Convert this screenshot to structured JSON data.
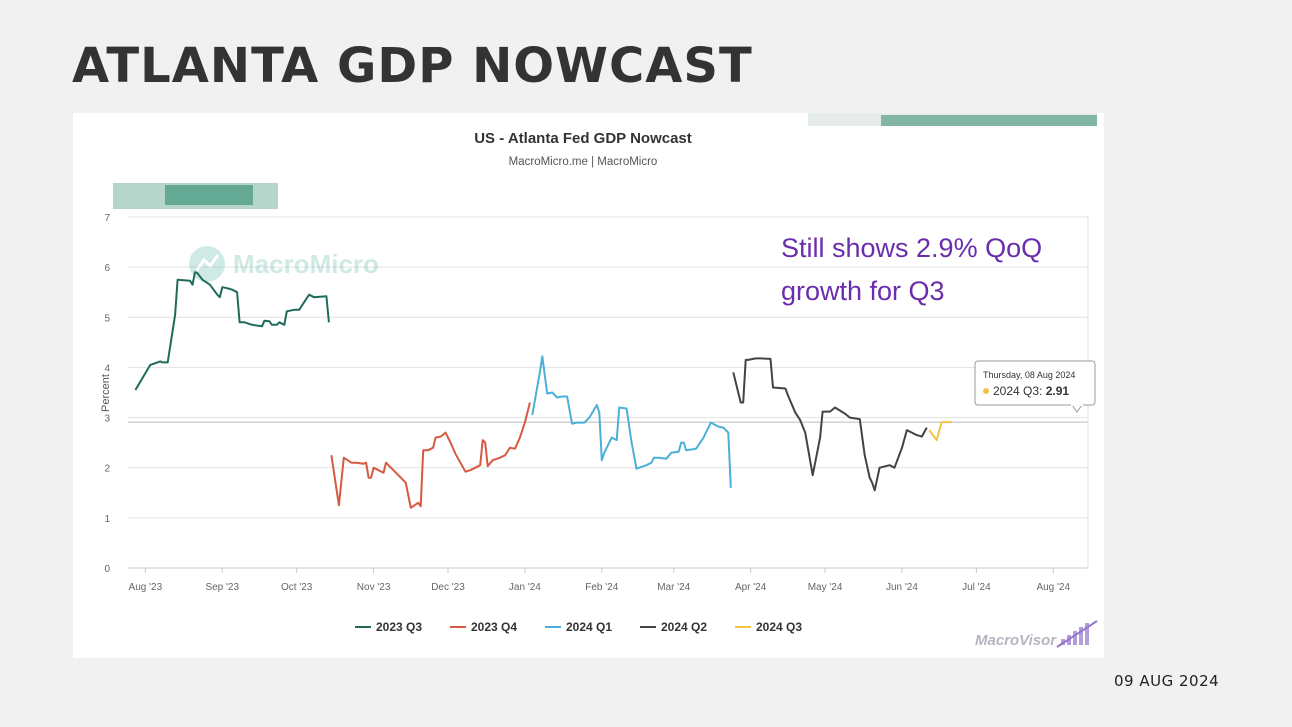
{
  "slide": {
    "title": "ATLANTA GDP NOWCAST",
    "date": "09 AUG 2024"
  },
  "branding": {
    "watermark": "MacroMicro",
    "logo": "MacroVisor"
  },
  "annotation": {
    "line1": "Still shows 2.9% QoQ",
    "line2": "growth for Q3",
    "color": "#6a2dab"
  },
  "tooltip": {
    "date": "Thursday, 08 Aug 2024",
    "series": "2024 Q3",
    "separator": ": ",
    "value": "2.91"
  },
  "chart_data": {
    "type": "line",
    "title": "US - Atlanta Fed GDP Nowcast",
    "subtitle": "MacroMicro.me | MacroMicro",
    "ylabel": "Percent",
    "xlabel": "",
    "ylim": [
      0,
      7
    ],
    "yticks": [
      0,
      1,
      2,
      3,
      4,
      5,
      6,
      7
    ],
    "x_start": "2023-07-25",
    "x_end": "2024-08-15",
    "xticks": [
      {
        "label": "Aug '23",
        "day": 7
      },
      {
        "label": "Sep '23",
        "day": 38
      },
      {
        "label": "Oct '23",
        "day": 68
      },
      {
        "label": "Nov '23",
        "day": 99
      },
      {
        "label": "Dec '23",
        "day": 129
      },
      {
        "label": "Jan '24",
        "day": 160
      },
      {
        "label": "Feb '24",
        "day": 191
      },
      {
        "label": "Mar '24",
        "day": 220
      },
      {
        "label": "Apr '24",
        "day": 251
      },
      {
        "label": "May '24",
        "day": 281
      },
      {
        "label": "Jun '24",
        "day": 312
      },
      {
        "label": "Jul '24",
        "day": 342
      },
      {
        "label": "Aug '24",
        "day": 373
      }
    ],
    "reference_value": 2.91,
    "series": [
      {
        "name": "2023 Q3",
        "color": "#1e6b5c",
        "points": [
          [
            3,
            3.55
          ],
          [
            9,
            4.05
          ],
          [
            13,
            4.12
          ],
          [
            14,
            4.1
          ],
          [
            16,
            4.1
          ],
          [
            19,
            5.05
          ],
          [
            20,
            5.75
          ],
          [
            25,
            5.73
          ],
          [
            26,
            5.65
          ],
          [
            27,
            5.9
          ],
          [
            28,
            5.88
          ],
          [
            30,
            5.75
          ],
          [
            33,
            5.65
          ],
          [
            36,
            5.45
          ],
          [
            37,
            5.4
          ],
          [
            38,
            5.6
          ],
          [
            40,
            5.58
          ],
          [
            42,
            5.55
          ],
          [
            44,
            5.5
          ],
          [
            45,
            4.9
          ],
          [
            47,
            4.9
          ],
          [
            50,
            4.85
          ],
          [
            54,
            4.82
          ],
          [
            55,
            4.93
          ],
          [
            57,
            4.92
          ],
          [
            58,
            4.85
          ],
          [
            60,
            4.85
          ],
          [
            61,
            4.9
          ],
          [
            63,
            4.85
          ],
          [
            64,
            5.12
          ],
          [
            67,
            5.15
          ],
          [
            69,
            5.15
          ],
          [
            71,
            5.3
          ],
          [
            73,
            5.45
          ],
          [
            75,
            5.4
          ],
          [
            80,
            5.42
          ],
          [
            81,
            4.9
          ]
        ]
      },
      {
        "name": "2023 Q4",
        "color": "#d65a41",
        "points": [
          [
            82,
            2.25
          ],
          [
            85,
            1.25
          ],
          [
            87,
            2.2
          ],
          [
            90,
            2.1
          ],
          [
            92,
            2.1
          ],
          [
            95,
            2.08
          ],
          [
            96,
            2.1
          ],
          [
            97,
            1.8
          ],
          [
            98,
            1.8
          ],
          [
            99,
            2.0
          ],
          [
            101,
            1.95
          ],
          [
            103,
            1.9
          ],
          [
            104,
            2.1
          ],
          [
            107,
            1.95
          ],
          [
            110,
            1.8
          ],
          [
            112,
            1.7
          ],
          [
            114,
            1.2
          ],
          [
            117,
            1.3
          ],
          [
            118,
            1.23
          ],
          [
            119,
            2.35
          ],
          [
            121,
            2.35
          ],
          [
            123,
            2.4
          ],
          [
            124,
            2.6
          ],
          [
            126,
            2.62
          ],
          [
            128,
            2.7
          ],
          [
            130,
            2.5
          ],
          [
            132,
            2.28
          ],
          [
            134,
            2.1
          ],
          [
            136,
            1.92
          ],
          [
            138,
            1.95
          ],
          [
            140,
            2.0
          ],
          [
            142,
            2.05
          ],
          [
            143,
            2.55
          ],
          [
            144,
            2.5
          ],
          [
            145,
            2.03
          ],
          [
            147,
            2.15
          ],
          [
            150,
            2.2
          ],
          [
            152,
            2.25
          ],
          [
            154,
            2.4
          ],
          [
            156,
            2.38
          ],
          [
            158,
            2.6
          ],
          [
            160,
            2.9
          ],
          [
            162,
            3.3
          ]
        ]
      },
      {
        "name": "2024 Q1",
        "color": "#4ab0d9",
        "points": [
          [
            163,
            3.05
          ],
          [
            166,
            3.9
          ],
          [
            167,
            4.22
          ],
          [
            169,
            3.48
          ],
          [
            171,
            3.5
          ],
          [
            173,
            3.4
          ],
          [
            175,
            3.42
          ],
          [
            177,
            3.42
          ],
          [
            179,
            2.88
          ],
          [
            181,
            2.9
          ],
          [
            184,
            2.9
          ],
          [
            186,
            3.0
          ],
          [
            189,
            3.25
          ],
          [
            190,
            3.1
          ],
          [
            191,
            2.15
          ],
          [
            192,
            2.3
          ],
          [
            195,
            2.6
          ],
          [
            197,
            2.55
          ],
          [
            198,
            3.2
          ],
          [
            201,
            3.18
          ],
          [
            203,
            2.5
          ],
          [
            205,
            1.98
          ],
          [
            209,
            2.05
          ],
          [
            211,
            2.1
          ],
          [
            212,
            2.2
          ],
          [
            214,
            2.2
          ],
          [
            217,
            2.18
          ],
          [
            219,
            2.3
          ],
          [
            222,
            2.32
          ],
          [
            223,
            2.5
          ],
          [
            224,
            2.5
          ],
          [
            225,
            2.35
          ],
          [
            229,
            2.38
          ],
          [
            232,
            2.6
          ],
          [
            235,
            2.9
          ],
          [
            238,
            2.82
          ],
          [
            240,
            2.8
          ],
          [
            242,
            2.7
          ],
          [
            243,
            1.6
          ]
        ]
      },
      {
        "name": "2024 Q2",
        "color": "#3f4448",
        "points": [
          [
            244,
            3.9
          ],
          [
            247,
            3.3
          ],
          [
            248,
            3.3
          ],
          [
            249,
            4.15
          ],
          [
            250,
            4.15
          ],
          [
            253,
            4.18
          ],
          [
            255,
            4.18
          ],
          [
            259,
            4.17
          ],
          [
            260,
            3.6
          ],
          [
            265,
            3.58
          ],
          [
            266,
            3.45
          ],
          [
            269,
            3.1
          ],
          [
            271,
            2.95
          ],
          [
            273,
            2.7
          ],
          [
            276,
            1.85
          ],
          [
            279,
            2.6
          ],
          [
            280,
            3.12
          ],
          [
            283,
            3.12
          ],
          [
            285,
            3.2
          ],
          [
            289,
            3.08
          ],
          [
            291,
            3.0
          ],
          [
            295,
            2.97
          ],
          [
            297,
            2.25
          ],
          [
            299,
            1.8
          ],
          [
            300,
            1.7
          ],
          [
            301,
            1.55
          ],
          [
            303,
            2.0
          ],
          [
            307,
            2.05
          ],
          [
            309,
            2.0
          ],
          [
            312,
            2.4
          ],
          [
            314,
            2.75
          ],
          [
            318,
            2.65
          ],
          [
            320,
            2.62
          ],
          [
            322,
            2.8
          ]
        ]
      },
      {
        "name": "2024 Q3",
        "color": "#f2c446",
        "points": [
          [
            323,
            2.75
          ],
          [
            326,
            2.55
          ],
          [
            328,
            2.91
          ],
          [
            331,
            2.91
          ],
          [
            332,
            2.91
          ]
        ]
      }
    ]
  }
}
